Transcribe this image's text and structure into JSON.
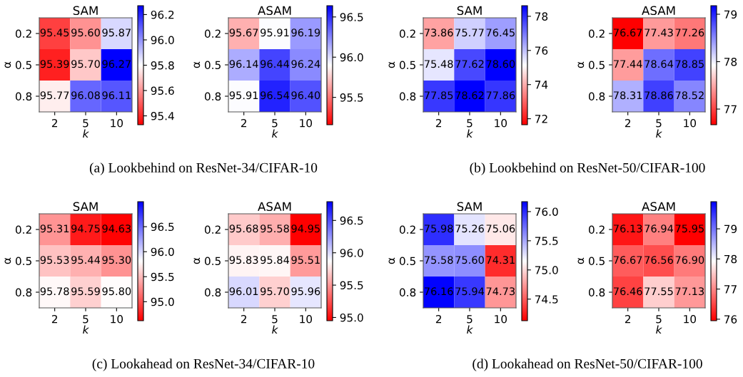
{
  "chart_data": [
    {
      "type": "heatmap",
      "title": "SAM",
      "xlabel": "k",
      "ylabel": "α",
      "categories": [
        "2",
        "5",
        "10"
      ],
      "y_categories": [
        "0.2",
        "0.5",
        "0.8"
      ],
      "cells": [
        [
          95.45,
          95.6,
          95.87
        ],
        [
          95.39,
          95.7,
          96.27
        ],
        [
          95.77,
          96.08,
          96.11
        ]
      ],
      "cell_labels": [
        [
          "95.45",
          "95.60",
          "95.87"
        ],
        [
          "95.39",
          "95.70",
          "96.27"
        ],
        [
          "95.77",
          "96.08",
          "96.11"
        ]
      ],
      "clim": [
        95.33,
        96.27
      ],
      "cticks": [
        95.4,
        95.6,
        95.8,
        {
          "value": 96.0,
          "label": "96.0"
        },
        96.2
      ],
      "data_labels": true,
      "annotations": [
        "(a) Lookbehind on ResNet-34/CIFAR-10"
      ]
    },
    {
      "type": "heatmap",
      "title": "ASAM",
      "xlabel": "k",
      "ylabel": "α",
      "categories": [
        "2",
        "5",
        "10"
      ],
      "y_categories": [
        "0.2",
        "0.5",
        "0.8"
      ],
      "cells": [
        [
          95.67,
          95.91,
          96.19
        ],
        [
          96.14,
          96.44,
          96.24
        ],
        [
          95.91,
          96.54,
          96.4
        ]
      ],
      "cell_labels": [
        [
          "95.67",
          "95.91",
          "96.19"
        ],
        [
          "96.14",
          "96.44",
          "96.24"
        ],
        [
          "95.91",
          "96.54",
          "96.40"
        ]
      ],
      "clim": [
        95.16,
        96.64
      ],
      "cticks": [
        95.5,
        {
          "value": 96.0,
          "label": "96.0"
        },
        96.5
      ],
      "data_labels": true
    },
    {
      "type": "heatmap",
      "title": "SAM",
      "xlabel": "k",
      "ylabel": "α",
      "categories": [
        "2",
        "5",
        "10"
      ],
      "y_categories": [
        "0.2",
        "0.5",
        "0.8"
      ],
      "cells": [
        [
          73.86,
          75.77,
          76.45
        ],
        [
          75.48,
          77.62,
          78.6
        ],
        [
          77.85,
          78.62,
          77.86
        ]
      ],
      "cell_labels": [
        [
          "73.86",
          "75.77",
          "76.45"
        ],
        [
          "75.48",
          "77.62",
          "78.60"
        ],
        [
          "77.85",
          "78.62",
          "77.86"
        ]
      ],
      "clim": [
        71.65,
        78.62
      ],
      "cticks": [
        72,
        74,
        76,
        78
      ],
      "data_labels": true,
      "annotations": [
        "(b) Lookbehind on ResNet-50/CIFAR-100"
      ]
    },
    {
      "type": "heatmap",
      "title": "ASAM",
      "xlabel": "k",
      "ylabel": "α",
      "categories": [
        "2",
        "5",
        "10"
      ],
      "y_categories": [
        "0.2",
        "0.5",
        "0.8"
      ],
      "cells": [
        [
          76.67,
          77.43,
          77.26
        ],
        [
          77.44,
          78.64,
          78.85
        ],
        [
          78.31,
          78.86,
          78.52
        ]
      ],
      "cell_labels": [
        [
          "76.67",
          "77.43",
          "77.26"
        ],
        [
          "77.44",
          "78.64",
          "78.85"
        ],
        [
          "78.31",
          "78.86",
          "78.52"
        ]
      ],
      "clim": [
        76.67,
        79.18
      ],
      "cticks": [
        77,
        78,
        79
      ],
      "data_labels": true
    },
    {
      "type": "heatmap",
      "title": "SAM",
      "xlabel": "k",
      "ylabel": "α",
      "categories": [
        "2",
        "5",
        "10"
      ],
      "y_categories": [
        "0.2",
        "0.5",
        "0.8"
      ],
      "cells": [
        [
          95.31,
          94.75,
          94.63
        ],
        [
          95.53,
          95.44,
          95.3
        ],
        [
          95.78,
          95.59,
          95.8
        ]
      ],
      "cell_labels": [
        [
          "95.31",
          "94.75",
          "94.63"
        ],
        [
          "95.53",
          "95.44",
          "95.30"
        ],
        [
          "95.78",
          "95.59",
          "95.80"
        ]
      ],
      "clim": [
        94.62,
        97.0
      ],
      "cticks": [
        {
          "value": 95.0,
          "label": "95.0"
        },
        95.5,
        {
          "value": 96.0,
          "label": "96.0"
        },
        96.5
      ],
      "data_labels": true,
      "annotations": [
        "(c) Lookahead on ResNet-34/CIFAR-10"
      ]
    },
    {
      "type": "heatmap",
      "title": "ASAM",
      "xlabel": "k",
      "ylabel": "α",
      "categories": [
        "2",
        "5",
        "10"
      ],
      "y_categories": [
        "0.2",
        "0.5",
        "0.8"
      ],
      "cells": [
        [
          95.68,
          95.58,
          94.95
        ],
        [
          95.83,
          95.84,
          95.51
        ],
        [
          96.01,
          95.7,
          95.96
        ]
      ],
      "cell_labels": [
        [
          "95.68",
          "95.58",
          "94.95"
        ],
        [
          "95.83",
          "95.84",
          "95.51"
        ],
        [
          "96.01",
          "95.70",
          "95.96"
        ]
      ],
      "clim": [
        94.95,
        96.79
      ],
      "cticks": [
        {
          "value": 95.0,
          "label": "95.0"
        },
        95.5,
        {
          "value": 96.0,
          "label": "96.0"
        },
        96.5
      ],
      "data_labels": true
    },
    {
      "type": "heatmap",
      "title": "SAM",
      "xlabel": "k",
      "ylabel": "α",
      "categories": [
        "2",
        "5",
        "10"
      ],
      "y_categories": [
        "0.2",
        "0.5",
        "0.8"
      ],
      "cells": [
        [
          75.98,
          75.26,
          75.06
        ],
        [
          75.58,
          75.6,
          74.31
        ],
        [
          76.16,
          75.94,
          74.73
        ]
      ],
      "cell_labels": [
        [
          "75.98",
          "75.26",
          "75.06"
        ],
        [
          "75.58",
          "75.60",
          "74.31"
        ],
        [
          "76.16",
          "75.94",
          "74.73"
        ]
      ],
      "clim": [
        74.13,
        76.17
      ],
      "cticks": [
        74.5,
        {
          "value": 75.0,
          "label": "75.0"
        },
        75.5,
        {
          "value": 76.0,
          "label": "76.0"
        }
      ],
      "data_labels": true,
      "annotations": [
        "(d) Lookahead on ResNet-50/CIFAR-100"
      ]
    },
    {
      "type": "heatmap",
      "title": "ASAM",
      "xlabel": "k",
      "ylabel": "α",
      "categories": [
        "2",
        "5",
        "10"
      ],
      "y_categories": [
        "0.2",
        "0.5",
        "0.8"
      ],
      "cells": [
        [
          76.13,
          76.94,
          75.95
        ],
        [
          76.67,
          76.56,
          76.9
        ],
        [
          76.46,
          77.55,
          77.13
        ]
      ],
      "cell_labels": [
        [
          "76.13",
          "76.94",
          "75.95"
        ],
        [
          "76.67",
          "76.56",
          "76.90"
        ],
        [
          "76.46",
          "77.55",
          "77.13"
        ]
      ],
      "clim": [
        75.95,
        79.9
      ],
      "cticks": [
        76,
        77,
        78,
        79
      ],
      "data_labels": true
    }
  ]
}
